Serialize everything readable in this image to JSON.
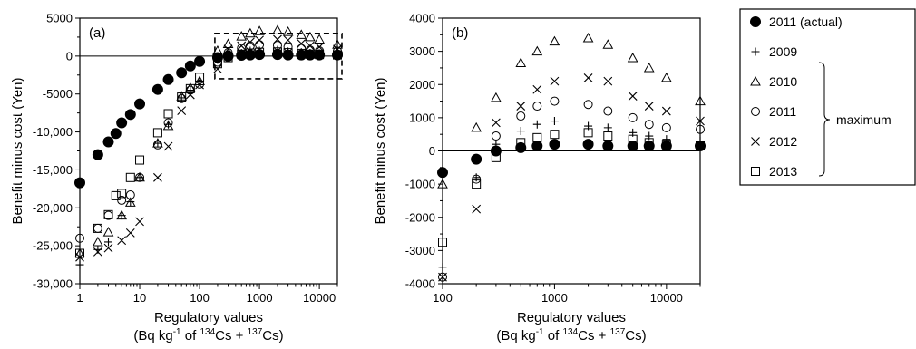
{
  "legend": {
    "items": [
      {
        "label": "2011 (actual)",
        "marker": "filled-circle"
      },
      {
        "label": "2009",
        "marker": "plus"
      },
      {
        "label": "2010",
        "marker": "triangle"
      },
      {
        "label": "2011",
        "marker": "circle"
      },
      {
        "label": "2012",
        "marker": "cross"
      },
      {
        "label": "2013",
        "marker": "square"
      }
    ],
    "group_label": "maximum"
  },
  "chart_data": [
    {
      "type": "scatter",
      "panel_label": "(a)",
      "xlabel": "Regulatory values",
      "xlabel_unit": [
        "(Bq kg",
        "-1",
        " of ",
        "134",
        "Cs + ",
        "137",
        "Cs)"
      ],
      "ylabel": "Benefit minus cost (Yen)",
      "x_scale": "log",
      "xlim": [
        1,
        20000
      ],
      "ylim": [
        -30000,
        5000
      ],
      "x_ticks": [
        {
          "v": 1,
          "label": "1"
        },
        {
          "v": 10,
          "label": "10"
        },
        {
          "v": 100,
          "label": "100"
        },
        {
          "v": 1000,
          "label": "1000"
        },
        {
          "v": 10000,
          "label": "10000"
        }
      ],
      "y_ticks": [
        {
          "v": 5000,
          "label": "5000"
        },
        {
          "v": 0,
          "label": "0"
        },
        {
          "v": -5000,
          "label": "-5000"
        },
        {
          "v": -10000,
          "label": "-10,000"
        },
        {
          "v": -15000,
          "label": "-15,000"
        },
        {
          "v": -20000,
          "label": "-20,000"
        },
        {
          "v": -25000,
          "label": "-25,000"
        },
        {
          "v": -30000,
          "label": "-30,000"
        }
      ],
      "zero_line": true,
      "zoom_box": {
        "x": [
          180,
          20000
        ],
        "y": [
          -3000,
          3000
        ]
      },
      "series": [
        {
          "name": "2011 (actual)",
          "marker": "filled-circle",
          "points": [
            [
              1,
              -16700
            ],
            [
              2,
              -13000
            ],
            [
              3,
              -11300
            ],
            [
              4,
              -10200
            ],
            [
              5,
              -8800
            ],
            [
              7,
              -7700
            ],
            [
              10,
              -6300
            ],
            [
              20,
              -4400
            ],
            [
              30,
              -3100
            ],
            [
              50,
              -2200
            ],
            [
              70,
              -1300
            ],
            [
              100,
              -700
            ],
            [
              200,
              -200
            ],
            [
              300,
              0
            ],
            [
              500,
              100
            ],
            [
              700,
              150
            ],
            [
              1000,
              200
            ],
            [
              2000,
              200
            ],
            [
              3000,
              150
            ],
            [
              5000,
              150
            ],
            [
              7000,
              150
            ],
            [
              10000,
              150
            ],
            [
              20000,
              150
            ]
          ]
        },
        {
          "name": "2009",
          "marker": "plus",
          "points": [
            [
              1,
              -27500
            ],
            [
              2,
              -25500
            ],
            [
              3,
              -24500
            ],
            [
              5,
              -21000
            ],
            [
              7,
              -19200
            ],
            [
              10,
              -16000
            ],
            [
              20,
              -11500
            ],
            [
              30,
              -9000
            ],
            [
              50,
              -5500
            ],
            [
              70,
              -4500
            ],
            [
              100,
              -3300
            ],
            [
              200,
              -500
            ],
            [
              300,
              200
            ],
            [
              500,
              400
            ],
            [
              700,
              700
            ],
            [
              1000,
              700
            ],
            [
              2000,
              800
            ],
            [
              3000,
              600
            ],
            [
              5000,
              500
            ],
            [
              7000,
              400
            ],
            [
              10000,
              350
            ],
            [
              20000,
              300
            ]
          ]
        },
        {
          "name": "2010",
          "marker": "triangle",
          "points": [
            [
              1,
              -26000
            ],
            [
              2,
              -24500
            ],
            [
              3,
              -23200
            ],
            [
              5,
              -21000
            ],
            [
              7,
              -19300
            ],
            [
              10,
              -16000
            ],
            [
              20,
              -11500
            ],
            [
              30,
              -9200
            ],
            [
              50,
              -5300
            ],
            [
              70,
              -4200
            ],
            [
              100,
              -3300
            ],
            [
              200,
              700
            ],
            [
              300,
              1600
            ],
            [
              500,
              2600
            ],
            [
              700,
              3000
            ],
            [
              1000,
              3300
            ],
            [
              2000,
              3400
            ],
            [
              3000,
              3200
            ],
            [
              5000,
              2800
            ],
            [
              7000,
              2500
            ],
            [
              10000,
              2200
            ],
            [
              20000,
              1500
            ]
          ]
        },
        {
          "name": "2011",
          "marker": "circle",
          "points": [
            [
              1,
              -24000
            ],
            [
              2,
              -22700
            ],
            [
              3,
              -21000
            ],
            [
              5,
              -19000
            ],
            [
              7,
              -18300
            ],
            [
              10,
              -16000
            ],
            [
              20,
              -11700
            ],
            [
              30,
              -8800
            ],
            [
              50,
              -5600
            ],
            [
              70,
              -4500
            ],
            [
              100,
              -3700
            ],
            [
              200,
              -800
            ],
            [
              300,
              450
            ],
            [
              500,
              1050
            ],
            [
              700,
              1350
            ],
            [
              1000,
              1500
            ],
            [
              2000,
              1400
            ],
            [
              3000,
              1200
            ],
            [
              5000,
              1000
            ],
            [
              7000,
              800
            ],
            [
              10000,
              700
            ],
            [
              20000,
              650
            ]
          ]
        },
        {
          "name": "2012",
          "marker": "cross",
          "points": [
            [
              1,
              -26500
            ],
            [
              2,
              -25800
            ],
            [
              3,
              -25300
            ],
            [
              5,
              -24300
            ],
            [
              7,
              -23300
            ],
            [
              10,
              -21800
            ],
            [
              20,
              -16000
            ],
            [
              30,
              -11900
            ],
            [
              50,
              -7200
            ],
            [
              70,
              -5100
            ],
            [
              100,
              -3800
            ],
            [
              200,
              -1700
            ],
            [
              300,
              900
            ],
            [
              500,
              1350
            ],
            [
              700,
              1850
            ],
            [
              1000,
              2100
            ],
            [
              2000,
              2200
            ],
            [
              3000,
              2100
            ],
            [
              5000,
              1650
            ],
            [
              7000,
              1350
            ],
            [
              10000,
              1200
            ],
            [
              20000,
              900
            ]
          ]
        },
        {
          "name": "2013",
          "marker": "square",
          "points": [
            [
              1,
              -26000
            ],
            [
              2,
              -22700
            ],
            [
              3,
              -20900
            ],
            [
              4,
              -18400
            ],
            [
              5,
              -18100
            ],
            [
              7,
              -16000
            ],
            [
              10,
              -13700
            ],
            [
              20,
              -10100
            ],
            [
              30,
              -7600
            ],
            [
              50,
              -5400
            ],
            [
              70,
              -4300
            ],
            [
              100,
              -2800
            ],
            [
              200,
              -1000
            ],
            [
              300,
              -200
            ],
            [
              500,
              250
            ],
            [
              700,
              400
            ],
            [
              1000,
              500
            ],
            [
              2000,
              550
            ],
            [
              3000,
              450
            ],
            [
              5000,
              350
            ],
            [
              7000,
              250
            ],
            [
              10000,
              200
            ],
            [
              20000,
              150
            ]
          ]
        }
      ]
    },
    {
      "type": "scatter",
      "panel_label": "(b)",
      "xlabel": "Regulatory values",
      "xlabel_unit": [
        "(Bq kg",
        "-1",
        " of ",
        "134",
        "Cs + ",
        "137",
        "Cs)"
      ],
      "ylabel": "Benefit minus cost (Yen)",
      "x_scale": "log",
      "xlim": [
        100,
        20000
      ],
      "ylim": [
        -4000,
        4000
      ],
      "x_ticks": [
        {
          "v": 100,
          "label": "100"
        },
        {
          "v": 1000,
          "label": "1000"
        },
        {
          "v": 10000,
          "label": "10000"
        }
      ],
      "y_ticks": [
        {
          "v": 4000,
          "label": "4000"
        },
        {
          "v": 3000,
          "label": "3000"
        },
        {
          "v": 2000,
          "label": "2000"
        },
        {
          "v": 1000,
          "label": "1000"
        },
        {
          "v": 0,
          "label": "0"
        },
        {
          "v": -1000,
          "label": "-1000"
        },
        {
          "v": -2000,
          "label": "-2000"
        },
        {
          "v": -3000,
          "label": "-3000"
        },
        {
          "v": -4000,
          "label": "-4000"
        }
      ],
      "zero_line": true,
      "series": [
        {
          "name": "2011 (actual)",
          "marker": "filled-circle",
          "points": [
            [
              100,
              -650
            ],
            [
              200,
              -250
            ],
            [
              300,
              0
            ],
            [
              500,
              100
            ],
            [
              700,
              150
            ],
            [
              1000,
              200
            ],
            [
              2000,
              200
            ],
            [
              3000,
              150
            ],
            [
              5000,
              150
            ],
            [
              7000,
              150
            ],
            [
              10000,
              150
            ],
            [
              20000,
              150
            ]
          ]
        },
        {
          "name": "2009",
          "marker": "plus",
          "points": [
            [
              100,
              -3500
            ],
            [
              200,
              -800
            ],
            [
              300,
              200
            ],
            [
              500,
              600
            ],
            [
              700,
              800
            ],
            [
              1000,
              900
            ],
            [
              2000,
              750
            ],
            [
              3000,
              700
            ],
            [
              5000,
              550
            ],
            [
              7000,
              450
            ],
            [
              10000,
              350
            ],
            [
              20000,
              300
            ]
          ]
        },
        {
          "name": "2010",
          "marker": "triangle",
          "points": [
            [
              100,
              -1000
            ],
            [
              200,
              700
            ],
            [
              300,
              1600
            ],
            [
              500,
              2650
            ],
            [
              700,
              3000
            ],
            [
              1000,
              3300
            ],
            [
              2000,
              3400
            ],
            [
              3000,
              3200
            ],
            [
              5000,
              2800
            ],
            [
              7000,
              2500
            ],
            [
              10000,
              2200
            ],
            [
              20000,
              1500
            ]
          ]
        },
        {
          "name": "2011",
          "marker": "circle",
          "points": [
            [
              100,
              -3800
            ],
            [
              200,
              -850
            ],
            [
              300,
              450
            ],
            [
              500,
              1050
            ],
            [
              700,
              1350
            ],
            [
              1000,
              1500
            ],
            [
              2000,
              1400
            ],
            [
              3000,
              1200
            ],
            [
              5000,
              1000
            ],
            [
              7000,
              800
            ],
            [
              10000,
              700
            ],
            [
              20000,
              650
            ]
          ]
        },
        {
          "name": "2012",
          "marker": "cross",
          "points": [
            [
              100,
              -3800
            ],
            [
              200,
              -1750
            ],
            [
              300,
              850
            ],
            [
              500,
              1350
            ],
            [
              700,
              1850
            ],
            [
              1000,
              2100
            ],
            [
              2000,
              2200
            ],
            [
              3000,
              2100
            ],
            [
              5000,
              1650
            ],
            [
              7000,
              1350
            ],
            [
              10000,
              1200
            ],
            [
              20000,
              900
            ]
          ]
        },
        {
          "name": "2013",
          "marker": "square",
          "points": [
            [
              100,
              -2750
            ],
            [
              200,
              -1000
            ],
            [
              300,
              -200
            ],
            [
              500,
              250
            ],
            [
              700,
              400
            ],
            [
              1000,
              500
            ],
            [
              2000,
              550
            ],
            [
              3000,
              450
            ],
            [
              5000,
              350
            ],
            [
              7000,
              250
            ],
            [
              10000,
              200
            ],
            [
              20000,
              150
            ]
          ]
        }
      ]
    }
  ]
}
